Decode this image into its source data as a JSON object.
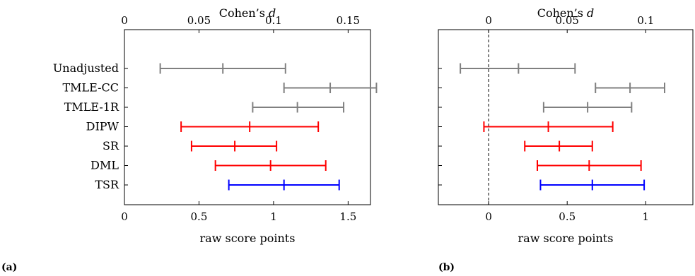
{
  "chart_data": [
    {
      "type": "errorbar",
      "panel_label": "(a)",
      "top_axis": {
        "label": "Cohen’s d",
        "ticks": [
          0,
          0.05,
          0.1,
          0.15
        ],
        "tick_labels": [
          "0",
          "0.05",
          "0.1",
          "0.15"
        ],
        "range": [
          0,
          0.165
        ]
      },
      "bottom_axis": {
        "label": "raw score points",
        "ticks": [
          0,
          0.5,
          1,
          1.5
        ],
        "tick_labels": [
          "0",
          "0.5",
          "1",
          "1.5"
        ],
        "range": [
          0,
          1.65
        ]
      },
      "categories": [
        "Unadjusted",
        "TMLE-CC",
        "TMLE-1R",
        "DIPW",
        "SR",
        "DML",
        "TSR"
      ],
      "rows": [
        {
          "name": "Unadjusted",
          "low": 0.24,
          "mid": 0.66,
          "high": 1.08,
          "color": "#808080"
        },
        {
          "name": "TMLE-CC",
          "low": 1.07,
          "mid": 1.38,
          "high": 1.69,
          "color": "#808080"
        },
        {
          "name": "TMLE-1R",
          "low": 0.86,
          "mid": 1.16,
          "high": 1.47,
          "color": "#808080"
        },
        {
          "name": "DIPW",
          "low": 0.38,
          "mid": 0.84,
          "high": 1.3,
          "color": "#ff0000"
        },
        {
          "name": "SR",
          "low": 0.45,
          "mid": 0.74,
          "high": 1.02,
          "color": "#ff0000"
        },
        {
          "name": "DML",
          "low": 0.61,
          "mid": 0.98,
          "high": 1.35,
          "color": "#ff0000"
        },
        {
          "name": "TSR",
          "low": 0.7,
          "mid": 1.07,
          "high": 1.44,
          "color": "#0000ff"
        }
      ]
    },
    {
      "type": "errorbar",
      "panel_label": "(b)",
      "top_axis": {
        "label": "Cohen’s d",
        "ticks": [
          0,
          0.05,
          0.1
        ],
        "tick_labels": [
          "0",
          "0.05",
          "0.1"
        ],
        "range": [
          -0.032,
          0.13
        ]
      },
      "bottom_axis": {
        "label": "raw score points",
        "ticks": [
          0,
          0.5,
          1
        ],
        "tick_labels": [
          "0",
          "0.5",
          "1"
        ],
        "range": [
          -0.32,
          1.3
        ]
      },
      "zero_line": true,
      "categories": [
        "Unadjusted",
        "TMLE-CC",
        "TMLE-1R",
        "DIPW",
        "SR",
        "DML",
        "TSR"
      ],
      "rows": [
        {
          "name": "Unadjusted",
          "low": -0.18,
          "mid": 0.19,
          "high": 0.55,
          "color": "#808080"
        },
        {
          "name": "TMLE-CC",
          "low": 0.68,
          "mid": 0.9,
          "high": 1.12,
          "color": "#808080"
        },
        {
          "name": "TMLE-1R",
          "low": 0.35,
          "mid": 0.63,
          "high": 0.91,
          "color": "#808080"
        },
        {
          "name": "DIPW",
          "low": -0.03,
          "mid": 0.38,
          "high": 0.79,
          "color": "#ff0000"
        },
        {
          "name": "SR",
          "low": 0.23,
          "mid": 0.45,
          "high": 0.66,
          "color": "#ff0000"
        },
        {
          "name": "DML",
          "low": 0.31,
          "mid": 0.64,
          "high": 0.97,
          "color": "#ff0000"
        },
        {
          "name": "TSR",
          "low": 0.33,
          "mid": 0.66,
          "high": 0.99,
          "color": "#0000ff"
        }
      ]
    }
  ]
}
